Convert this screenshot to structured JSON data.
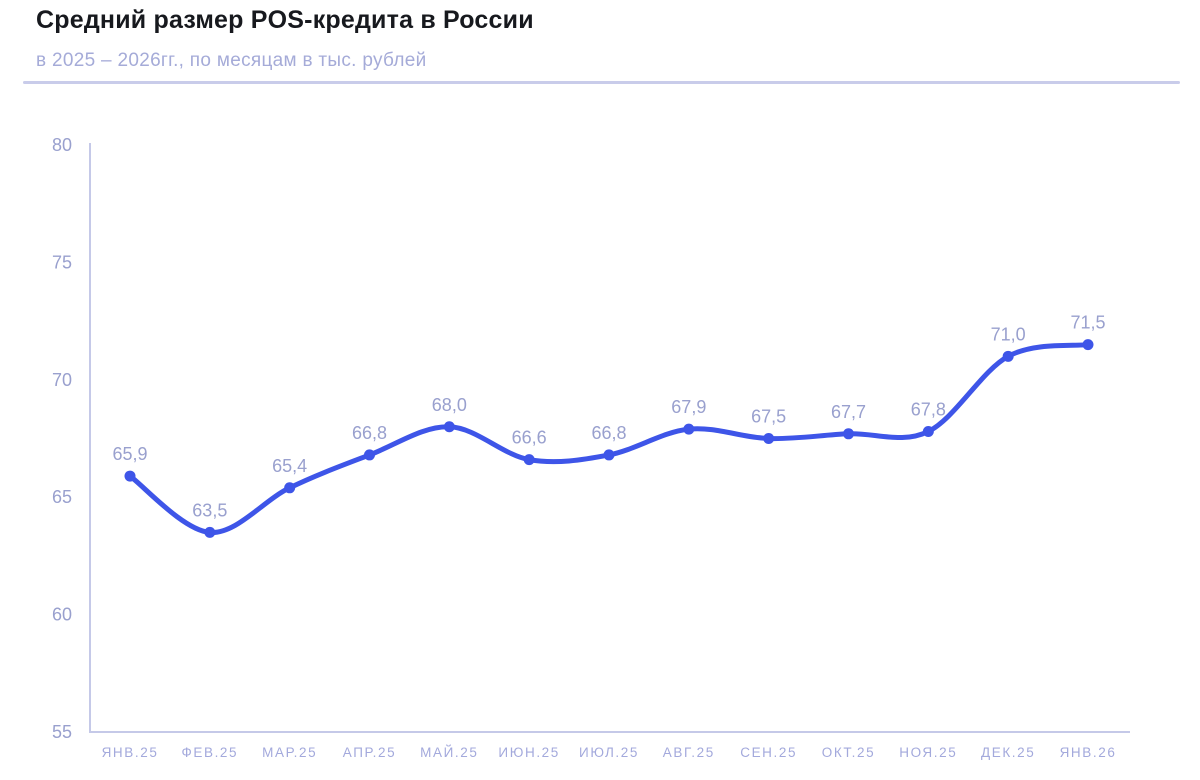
{
  "header": {
    "title": "Средний размер POS-кредита в России",
    "subtitle": "в 2025 – 2026гг., по месяцам в тыс. рублей"
  },
  "chart_data": {
    "type": "line",
    "title": "Средний размер POS-кредита в России",
    "subtitle": "в 2025 – 2026гг., по месяцам в тыс. рублей",
    "categories": [
      "ЯНВ.25",
      "ФЕВ.25",
      "МАР.25",
      "АПР.25",
      "МАЙ.25",
      "ИЮН.25",
      "ИЮЛ.25",
      "АВГ.25",
      "СЕН.25",
      "ОКТ.25",
      "НОЯ.25",
      "ДЕК.25",
      "ЯНВ.26"
    ],
    "values": [
      65.9,
      63.5,
      65.4,
      66.8,
      68.0,
      66.6,
      66.8,
      67.9,
      67.5,
      67.7,
      67.8,
      71.0,
      71.5
    ],
    "point_labels": [
      "65,9",
      "63,5",
      "65,4",
      "66,8",
      "68,0",
      "66,6",
      "66,8",
      "67,9",
      "67,5",
      "67,7",
      "67,8",
      "71,0",
      "71,5"
    ],
    "xlabel": "",
    "ylabel": "",
    "ylim": [
      55,
      80
    ],
    "yticks": [
      80,
      75,
      70,
      65,
      60,
      55
    ],
    "grid": false,
    "legend": "none",
    "smooth": true,
    "colors": {
      "line": "#3e55e8",
      "point": "#3e55e8",
      "value_label": "#99a0ce",
      "y_tick": "#99a0ce",
      "x_tick": "#a3a9dc",
      "axis": "#c5c9e8",
      "divider": "#c9ccea",
      "title": "#17191e",
      "subtitle": "#a5abd8",
      "background": "#ffffff"
    }
  }
}
